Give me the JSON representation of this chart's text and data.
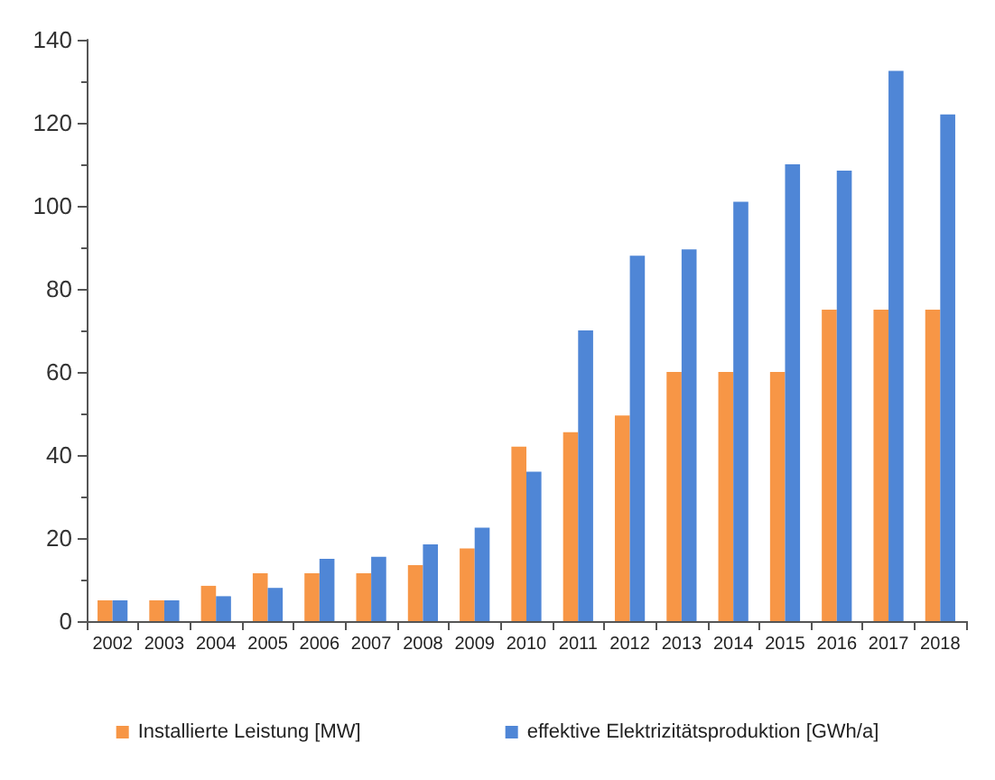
{
  "chart_data": {
    "type": "bar",
    "categories": [
      "2002",
      "2003",
      "2004",
      "2005",
      "2006",
      "2007",
      "2008",
      "2009",
      "2010",
      "2011",
      "2012",
      "2013",
      "2014",
      "2015",
      "2016",
      "2017",
      "2018"
    ],
    "series": [
      {
        "name": "Installierte Leistung [MW]",
        "color": "#f79646",
        "values": [
          5,
          5,
          8.5,
          11.5,
          11.5,
          11.5,
          13.5,
          17.5,
          42,
          45.5,
          49.5,
          60,
          60,
          60,
          75,
          75,
          75
        ]
      },
      {
        "name": "effektive Elektrizitätsproduktion [GWh/a]",
        "color": "#4f86d6",
        "values": [
          5,
          5,
          6,
          8,
          15,
          15.5,
          18.5,
          22.5,
          36,
          70,
          88,
          89.5,
          101,
          110,
          108.5,
          132.5,
          122
        ]
      }
    ],
    "ylim": [
      0,
      140
    ],
    "yticks": [
      0,
      20,
      40,
      60,
      80,
      100,
      120,
      140
    ],
    "grid": false,
    "legend": "bottom"
  }
}
